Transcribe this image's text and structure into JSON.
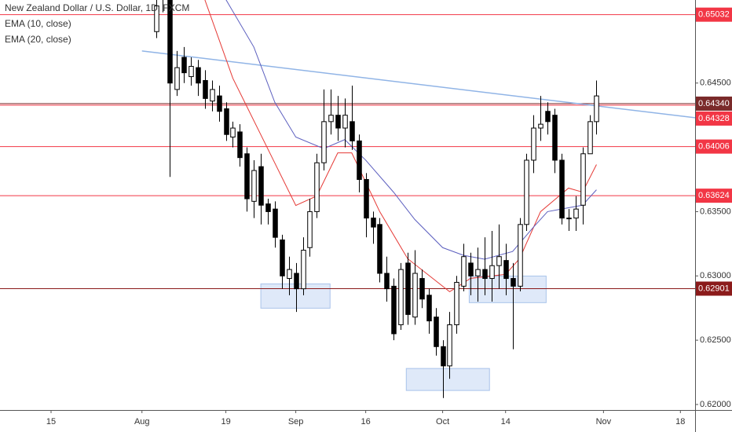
{
  "chart_data": {
    "type": "candlestick",
    "title": "New Zealand Dollar / U.S. Dollar, 1D, FXCM",
    "candles": {
      "x": [
        15,
        16,
        17,
        18,
        19,
        20,
        21,
        22,
        23,
        24,
        25,
        26,
        27,
        28,
        29,
        30,
        31,
        32,
        33,
        34,
        35,
        36,
        37,
        38,
        39,
        40,
        41,
        42,
        43,
        44,
        45,
        46,
        47,
        48,
        49,
        50,
        51,
        52,
        53,
        54,
        55,
        56,
        57,
        58,
        59,
        60,
        61,
        62,
        63,
        64,
        65,
        66,
        67,
        68,
        69,
        70,
        71,
        72,
        73,
        74,
        75,
        76,
        77,
        78
      ],
      "open": [
        0.649,
        0.6515,
        0.652,
        0.6445,
        0.647,
        0.6455,
        0.6462,
        0.6452,
        0.6436,
        0.644,
        0.643,
        0.6408,
        0.6412,
        0.6395,
        0.6358,
        0.6385,
        0.6356,
        0.6352,
        0.6328,
        0.6298,
        0.6302,
        0.629,
        0.6322,
        0.635,
        0.6388,
        0.642,
        0.6425,
        0.6415,
        0.642,
        0.6405,
        0.6375,
        0.6345,
        0.634,
        0.6302,
        0.6292,
        0.6262,
        0.631,
        0.6268,
        0.6298,
        0.6285,
        0.6268,
        0.6245,
        0.623,
        0.6262,
        0.6292,
        0.631,
        0.63,
        0.6305,
        0.6298,
        0.6308,
        0.6312,
        0.6298,
        0.6292,
        0.634,
        0.639,
        0.6415,
        0.6428,
        0.6425,
        0.639,
        0.6345,
        0.6345,
        0.6355,
        0.6395,
        0.642
      ],
      "high": [
        0.6525,
        0.6545,
        0.6525,
        0.6475,
        0.6478,
        0.647,
        0.6468,
        0.646,
        0.6452,
        0.6448,
        0.6435,
        0.642,
        0.6418,
        0.64,
        0.639,
        0.6395,
        0.636,
        0.6358,
        0.6332,
        0.6315,
        0.631,
        0.633,
        0.636,
        0.6395,
        0.6445,
        0.6445,
        0.644,
        0.6438,
        0.6448,
        0.641,
        0.638,
        0.635,
        0.6345,
        0.6315,
        0.6298,
        0.631,
        0.6318,
        0.632,
        0.6305,
        0.629,
        0.6275,
        0.625,
        0.6272,
        0.63,
        0.6325,
        0.6318,
        0.6322,
        0.633,
        0.6335,
        0.634,
        0.6325,
        0.631,
        0.6345,
        0.6395,
        0.6425,
        0.644,
        0.6435,
        0.643,
        0.6395,
        0.6352,
        0.6362,
        0.64,
        0.6425,
        0.6452
      ],
      "low": [
        0.6485,
        0.6505,
        0.6377,
        0.644,
        0.645,
        0.6448,
        0.644,
        0.643,
        0.6428,
        0.642,
        0.6405,
        0.64,
        0.6385,
        0.635,
        0.6345,
        0.634,
        0.634,
        0.6322,
        0.629,
        0.6285,
        0.6272,
        0.6285,
        0.6315,
        0.6345,
        0.6382,
        0.641,
        0.6405,
        0.64,
        0.6398,
        0.6365,
        0.633,
        0.6325,
        0.6295,
        0.628,
        0.625,
        0.6258,
        0.6262,
        0.6262,
        0.6275,
        0.6255,
        0.6238,
        0.6205,
        0.622,
        0.6255,
        0.6288,
        0.6285,
        0.628,
        0.6285,
        0.628,
        0.629,
        0.6285,
        0.6243,
        0.6288,
        0.6335,
        0.638,
        0.6405,
        0.641,
        0.638,
        0.634,
        0.6335,
        0.6335,
        0.634,
        0.6395,
        0.641
      ],
      "close": [
        0.651,
        0.653,
        0.645,
        0.6462,
        0.6458,
        0.6463,
        0.645,
        0.6438,
        0.6445,
        0.6428,
        0.641,
        0.6415,
        0.6392,
        0.636,
        0.6382,
        0.6355,
        0.635,
        0.633,
        0.63,
        0.6305,
        0.629,
        0.632,
        0.635,
        0.6388,
        0.642,
        0.6425,
        0.6415,
        0.6425,
        0.6405,
        0.6375,
        0.6345,
        0.6338,
        0.6302,
        0.629,
        0.6255,
        0.6305,
        0.627,
        0.6302,
        0.6282,
        0.6265,
        0.6245,
        0.623,
        0.6262,
        0.6295,
        0.6315,
        0.63,
        0.6305,
        0.6298,
        0.6308,
        0.6315,
        0.6298,
        0.6292,
        0.634,
        0.639,
        0.6415,
        0.6418,
        0.642,
        0.639,
        0.6345,
        0.6345,
        0.6352,
        0.6395,
        0.642,
        0.644
      ]
    },
    "series": [
      {
        "name": "EMA (10, close)",
        "color": "#e53935",
        "x": [
          22,
          26,
          31,
          35,
          38,
          41,
          43,
          47,
          51,
          56,
          57,
          60,
          65,
          67,
          70,
          74,
          76,
          78
        ],
        "values": [
          0.65147,
          0.64537,
          0.63988,
          0.63548,
          0.63622,
          0.63957,
          0.63957,
          0.635,
          0.63134,
          0.6292,
          0.62877,
          0.62981,
          0.63012,
          0.63134,
          0.635,
          0.63683,
          0.63652,
          0.63866
        ]
      },
      {
        "name": "EMA (20, close)",
        "color": "#5c5fbf",
        "x": [
          25,
          29,
          32,
          35,
          39,
          42,
          45,
          49,
          52,
          56,
          59,
          62,
          66,
          69,
          71,
          74,
          76,
          78
        ],
        "values": [
          0.6515,
          0.6478,
          0.6435,
          0.6408,
          0.6399,
          0.6406,
          0.639,
          0.6365,
          0.6344,
          0.6322,
          0.6316,
          0.6313,
          0.6319,
          0.6338,
          0.635,
          0.6353,
          0.6355,
          0.6367
        ]
      }
    ],
    "trendline": {
      "x": [
        13,
        92.1
      ],
      "values": [
        0.6475,
        0.6423
      ],
      "color": "#90b4e6"
    },
    "levels": [
      {
        "value": 0.65032,
        "color": "#f23645"
      },
      {
        "value": 0.6434,
        "label": "0.64340",
        "color": "#7a2a2a"
      },
      {
        "value": 0.64328,
        "color": "#f23645"
      },
      {
        "value": 0.64006,
        "color": "#f23645"
      },
      {
        "value": 0.63624,
        "color": "#f23645"
      },
      {
        "value": 0.62901,
        "color": "#8b1a1a"
      }
    ],
    "zones": [
      {
        "x": [
          30,
          39.9
        ],
        "range": [
          0.62749,
          0.62938
        ]
      },
      {
        "x": [
          50.8,
          62.7
        ],
        "range": [
          0.62109,
          0.6228
        ]
      },
      {
        "x": [
          59.8,
          70.8
        ],
        "range": [
          0.62792,
          0.62999
        ]
      }
    ],
    "xlim": [
      -7.3,
      92.1
    ],
    "xticks": [
      {
        "value": 0,
        "label": "15"
      },
      {
        "value": 13,
        "label": "Aug"
      },
      {
        "value": 25,
        "label": "19"
      },
      {
        "value": 35,
        "label": "Sep"
      },
      {
        "value": 45,
        "label": "16"
      },
      {
        "value": 56,
        "label": "Oct"
      },
      {
        "value": 65,
        "label": "14"
      },
      {
        "value": 79,
        "label": "Nov"
      },
      {
        "value": 90,
        "label": "18"
      }
    ],
    "ylim": [
      0.61957,
      0.65146
    ],
    "yticks": [
      {
        "value": 0.62,
        "label": "0.62000"
      },
      {
        "value": 0.625,
        "label": "0.62500"
      },
      {
        "value": 0.63,
        "label": "0.63000"
      },
      {
        "value": 0.635,
        "label": "0.63500"
      },
      {
        "value": 0.645,
        "label": "0.64500"
      }
    ]
  }
}
